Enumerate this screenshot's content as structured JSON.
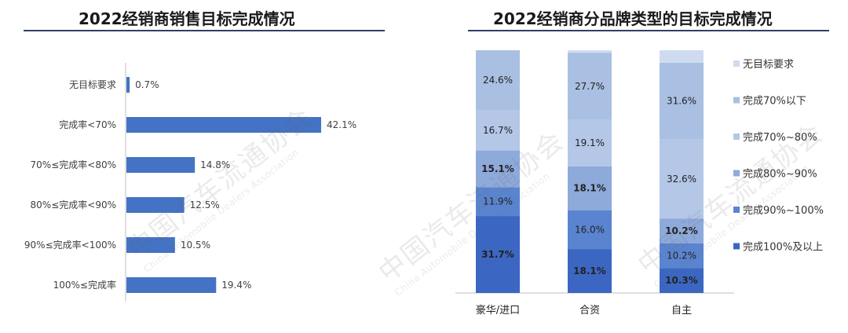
{
  "left": {
    "title": "2022经销商销售目标完成情况"
  },
  "right": {
    "title": "2022经销商分品牌类型的目标完成情况"
  },
  "watermark": {
    "cn": "中国汽车流通协会",
    "en": "China Automobile Dealers Association"
  },
  "colors": {
    "bar_blue": "#4472c4",
    "title_rule": "#2f3f66",
    "stack": [
      "#3b67c2",
      "#5a84cf",
      "#8eaadb",
      "#b4c7e7",
      "#a9c0e2",
      "#cfdcf0"
    ]
  },
  "chart_data": [
    {
      "type": "bar",
      "orientation": "horizontal",
      "title": "2022经销商销售目标完成情况",
      "categories": [
        "无目标要求",
        "完成率<70%",
        "70%≤完成率<80%",
        "80%≤完成率<90%",
        "90%≤完成率<100%",
        "100%≤完成率"
      ],
      "values": [
        0.7,
        42.1,
        14.8,
        12.5,
        10.5,
        19.4
      ],
      "value_labels": [
        "0.7%",
        "42.1%",
        "14.8%",
        "12.5%",
        "10.5%",
        "19.4%"
      ],
      "xlim": [
        0,
        45
      ],
      "grid": false,
      "legend": "none"
    },
    {
      "type": "bar",
      "stacked": true,
      "title": "2022经销商分品牌类型的目标完成情况",
      "categories": [
        "豪华/进口",
        "合资",
        "自主"
      ],
      "series": [
        {
          "name": "完成100%及以上",
          "values": [
            31.7,
            18.1,
            10.3
          ],
          "labels": [
            "31.7%",
            "18.1%",
            "10.3%"
          ],
          "bold": true
        },
        {
          "name": "完成90%~100%",
          "values": [
            11.9,
            16.0,
            10.2
          ],
          "labels": [
            "11.9%",
            "16.0%",
            "10.2%"
          ],
          "bold": false
        },
        {
          "name": "完成80%~90%",
          "values": [
            15.1,
            18.1,
            10.2
          ],
          "labels": [
            "15.1%",
            "18.1%",
            "10.2%"
          ],
          "bold": true
        },
        {
          "name": "完成70%~80%",
          "values": [
            16.7,
            19.1,
            32.6
          ],
          "labels": [
            "16.7%",
            "19.1%",
            "32.6%"
          ],
          "bold": false
        },
        {
          "name": "完成70%以下",
          "values": [
            24.6,
            27.7,
            31.6
          ],
          "labels": [
            "24.6%",
            "27.7%",
            "31.6%"
          ],
          "bold": false
        },
        {
          "name": "无目标要求",
          "values": [
            0.0,
            1.0,
            5.1
          ],
          "labels": [
            "",
            "",
            ""
          ],
          "bold": false
        }
      ],
      "ylim": [
        0,
        100
      ],
      "grid": false,
      "legend": "right"
    }
  ]
}
